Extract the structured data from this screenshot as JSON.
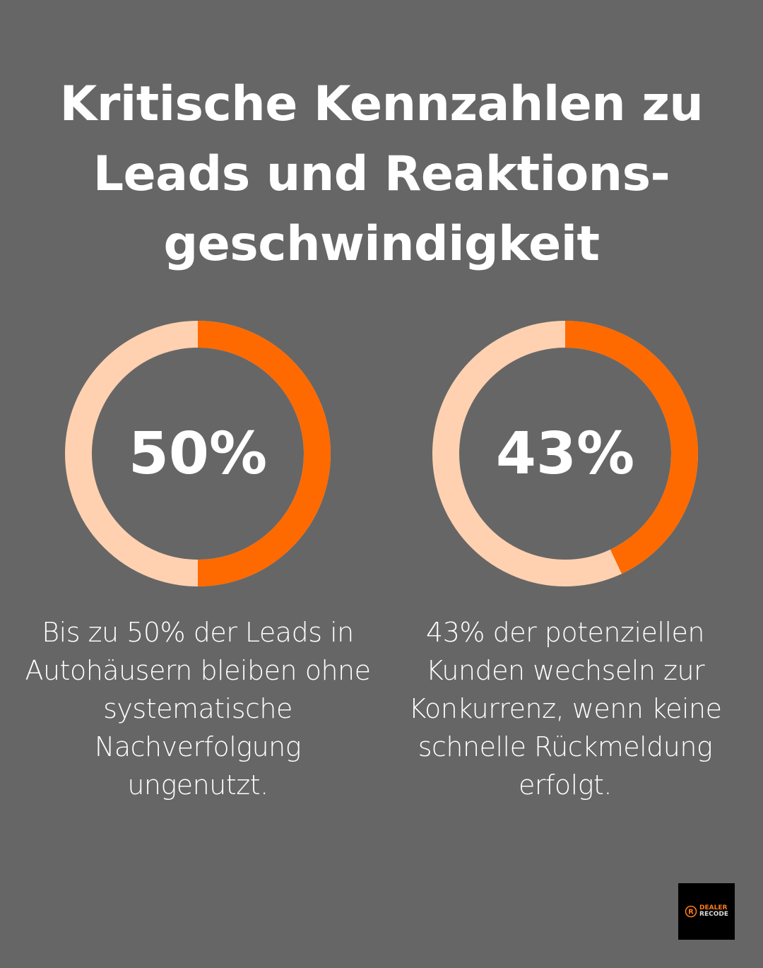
{
  "title_lines": [
    "Kritische Kennzahlen zu",
    "Leads und Reaktions-",
    "geschwindigkeit"
  ],
  "colors": {
    "background": "#666666",
    "accent": "#FF6A00",
    "track": "#FFD1B0"
  },
  "chart_data": [
    {
      "type": "pie",
      "variant": "donut",
      "value": 50,
      "label": "50%",
      "description": "Bis zu 50% der Leads in Autohäusern bleiben ohne systematische Nachverfolgung ungenutzt."
    },
    {
      "type": "pie",
      "variant": "donut",
      "value": 43,
      "label": "43%",
      "description": "43% der potenziellen Kunden wechseln zur Konkurrenz, wenn keine schnelle Rückmeldung erfolgt."
    }
  ],
  "logo": {
    "line1": "DEALER",
    "line2": "RECODE",
    "icon": "r-circle-icon"
  }
}
